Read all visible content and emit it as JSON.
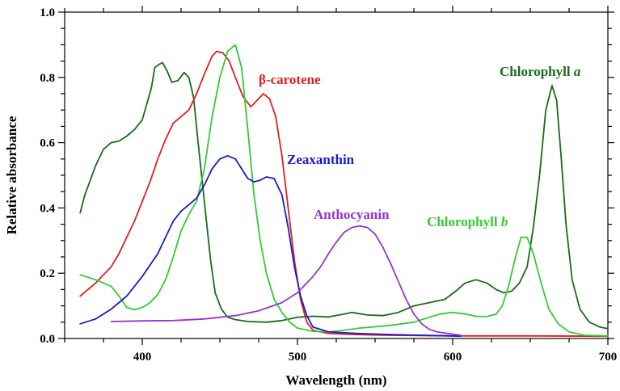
{
  "chart_data": {
    "type": "line",
    "xlabel": "Wavelength (nm)",
    "ylabel": "Relative absorbance",
    "xlim": [
      350,
      700
    ],
    "ylim": [
      0,
      1.0
    ],
    "x_ticks": [
      400,
      500,
      600,
      700
    ],
    "y_ticks": [
      0.0,
      0.2,
      0.4,
      0.6,
      0.8,
      1.0
    ],
    "y_tick_labels": [
      "0.0",
      "0.2",
      "0.4",
      "0.6",
      "0.8",
      "1.0"
    ],
    "grid": false,
    "series": [
      {
        "name": "Chlorophyll a",
        "label_parts": [
          "Chlorophyll ",
          "a"
        ],
        "color": "#1a6b1a",
        "points": [
          [
            360,
            0.385
          ],
          [
            363,
            0.44
          ],
          [
            370,
            0.53
          ],
          [
            375,
            0.58
          ],
          [
            380,
            0.6
          ],
          [
            385,
            0.605
          ],
          [
            390,
            0.62
          ],
          [
            395,
            0.64
          ],
          [
            400,
            0.67
          ],
          [
            403,
            0.72
          ],
          [
            406,
            0.77
          ],
          [
            408,
            0.83
          ],
          [
            411,
            0.84
          ],
          [
            413,
            0.845
          ],
          [
            416,
            0.82
          ],
          [
            419,
            0.785
          ],
          [
            423,
            0.79
          ],
          [
            427,
            0.815
          ],
          [
            430,
            0.8
          ],
          [
            433,
            0.74
          ],
          [
            436,
            0.6
          ],
          [
            440,
            0.42
          ],
          [
            444,
            0.24
          ],
          [
            447,
            0.14
          ],
          [
            451,
            0.09
          ],
          [
            455,
            0.065
          ],
          [
            460,
            0.058
          ],
          [
            468,
            0.052
          ],
          [
            480,
            0.05
          ],
          [
            490,
            0.055
          ],
          [
            500,
            0.065
          ],
          [
            510,
            0.068
          ],
          [
            520,
            0.066
          ],
          [
            530,
            0.075
          ],
          [
            535,
            0.08
          ],
          [
            545,
            0.072
          ],
          [
            555,
            0.07
          ],
          [
            565,
            0.08
          ],
          [
            575,
            0.1
          ],
          [
            585,
            0.11
          ],
          [
            595,
            0.12
          ],
          [
            602,
            0.145
          ],
          [
            608,
            0.17
          ],
          [
            615,
            0.18
          ],
          [
            622,
            0.17
          ],
          [
            628,
            0.15
          ],
          [
            633,
            0.14
          ],
          [
            638,
            0.145
          ],
          [
            643,
            0.17
          ],
          [
            648,
            0.22
          ],
          [
            652,
            0.34
          ],
          [
            656,
            0.5
          ],
          [
            660,
            0.7
          ],
          [
            664,
            0.775
          ],
          [
            667,
            0.73
          ],
          [
            670,
            0.55
          ],
          [
            673,
            0.35
          ],
          [
            677,
            0.18
          ],
          [
            682,
            0.09
          ],
          [
            688,
            0.05
          ],
          [
            695,
            0.035
          ],
          [
            700,
            0.03
          ]
        ]
      },
      {
        "name": "β-carotene",
        "label_parts": [
          "β-carotene"
        ],
        "color": "#e02020",
        "points": [
          [
            360,
            0.13
          ],
          [
            370,
            0.17
          ],
          [
            380,
            0.22
          ],
          [
            385,
            0.26
          ],
          [
            390,
            0.31
          ],
          [
            395,
            0.36
          ],
          [
            400,
            0.42
          ],
          [
            405,
            0.48
          ],
          [
            410,
            0.55
          ],
          [
            415,
            0.61
          ],
          [
            420,
            0.66
          ],
          [
            425,
            0.68
          ],
          [
            430,
            0.7
          ],
          [
            435,
            0.75
          ],
          [
            440,
            0.81
          ],
          [
            445,
            0.865
          ],
          [
            448,
            0.88
          ],
          [
            452,
            0.875
          ],
          [
            456,
            0.85
          ],
          [
            460,
            0.8
          ],
          [
            465,
            0.74
          ],
          [
            470,
            0.71
          ],
          [
            474,
            0.73
          ],
          [
            478,
            0.75
          ],
          [
            482,
            0.735
          ],
          [
            486,
            0.68
          ],
          [
            490,
            0.56
          ],
          [
            494,
            0.4
          ],
          [
            498,
            0.24
          ],
          [
            502,
            0.12
          ],
          [
            506,
            0.05
          ],
          [
            510,
            0.025
          ],
          [
            520,
            0.015
          ],
          [
            540,
            0.012
          ],
          [
            560,
            0.01
          ],
          [
            600,
            0.008
          ],
          [
            650,
            0.008
          ],
          [
            700,
            0.007
          ]
        ]
      },
      {
        "name": "Chlorophyll b",
        "label_parts": [
          "Chlorophyll ",
          "b"
        ],
        "color": "#33cc33",
        "points": [
          [
            360,
            0.195
          ],
          [
            370,
            0.18
          ],
          [
            380,
            0.16
          ],
          [
            385,
            0.13
          ],
          [
            390,
            0.095
          ],
          [
            395,
            0.088
          ],
          [
            400,
            0.095
          ],
          [
            405,
            0.11
          ],
          [
            410,
            0.135
          ],
          [
            415,
            0.18
          ],
          [
            420,
            0.25
          ],
          [
            425,
            0.33
          ],
          [
            430,
            0.38
          ],
          [
            435,
            0.42
          ],
          [
            440,
            0.52
          ],
          [
            445,
            0.68
          ],
          [
            450,
            0.8
          ],
          [
            455,
            0.88
          ],
          [
            460,
            0.9
          ],
          [
            464,
            0.83
          ],
          [
            468,
            0.64
          ],
          [
            472,
            0.44
          ],
          [
            476,
            0.3
          ],
          [
            480,
            0.2
          ],
          [
            485,
            0.12
          ],
          [
            490,
            0.08
          ],
          [
            495,
            0.05
          ],
          [
            500,
            0.032
          ],
          [
            510,
            0.022
          ],
          [
            520,
            0.02
          ],
          [
            530,
            0.025
          ],
          [
            540,
            0.032
          ],
          [
            560,
            0.04
          ],
          [
            575,
            0.05
          ],
          [
            585,
            0.065
          ],
          [
            592,
            0.075
          ],
          [
            600,
            0.08
          ],
          [
            608,
            0.075
          ],
          [
            615,
            0.068
          ],
          [
            622,
            0.067
          ],
          [
            628,
            0.075
          ],
          [
            632,
            0.1
          ],
          [
            636,
            0.16
          ],
          [
            640,
            0.24
          ],
          [
            644,
            0.31
          ],
          [
            648,
            0.31
          ],
          [
            652,
            0.26
          ],
          [
            657,
            0.17
          ],
          [
            662,
            0.09
          ],
          [
            668,
            0.045
          ],
          [
            675,
            0.02
          ],
          [
            685,
            0.01
          ],
          [
            700,
            0.008
          ]
        ]
      },
      {
        "name": "Zeaxanthin",
        "label_parts": [
          "Zeaxanthin"
        ],
        "color": "#1a1acc",
        "points": [
          [
            360,
            0.045
          ],
          [
            370,
            0.06
          ],
          [
            380,
            0.09
          ],
          [
            390,
            0.13
          ],
          [
            400,
            0.19
          ],
          [
            410,
            0.26
          ],
          [
            415,
            0.31
          ],
          [
            420,
            0.36
          ],
          [
            425,
            0.39
          ],
          [
            430,
            0.41
          ],
          [
            435,
            0.43
          ],
          [
            440,
            0.47
          ],
          [
            445,
            0.52
          ],
          [
            450,
            0.55
          ],
          [
            455,
            0.56
          ],
          [
            460,
            0.55
          ],
          [
            464,
            0.52
          ],
          [
            468,
            0.49
          ],
          [
            472,
            0.48
          ],
          [
            476,
            0.485
          ],
          [
            480,
            0.495
          ],
          [
            485,
            0.49
          ],
          [
            490,
            0.44
          ],
          [
            494,
            0.34
          ],
          [
            498,
            0.22
          ],
          [
            502,
            0.13
          ],
          [
            506,
            0.07
          ],
          [
            510,
            0.035
          ],
          [
            520,
            0.02
          ],
          [
            540,
            0.015
          ],
          [
            560,
            0.012
          ],
          [
            600,
            0.008
          ],
          [
            605,
            0.007
          ]
        ]
      },
      {
        "name": "Anthocyanin",
        "label_parts": [
          "Anthocyanin"
        ],
        "color": "#9933cc",
        "points": [
          [
            380,
            0.052
          ],
          [
            400,
            0.054
          ],
          [
            420,
            0.055
          ],
          [
            440,
            0.06
          ],
          [
            460,
            0.07
          ],
          [
            475,
            0.085
          ],
          [
            490,
            0.11
          ],
          [
            500,
            0.14
          ],
          [
            510,
            0.19
          ],
          [
            515,
            0.22
          ],
          [
            520,
            0.26
          ],
          [
            525,
            0.295
          ],
          [
            530,
            0.325
          ],
          [
            535,
            0.34
          ],
          [
            540,
            0.345
          ],
          [
            545,
            0.34
          ],
          [
            550,
            0.32
          ],
          [
            555,
            0.28
          ],
          [
            560,
            0.23
          ],
          [
            565,
            0.175
          ],
          [
            570,
            0.12
          ],
          [
            575,
            0.075
          ],
          [
            580,
            0.045
          ],
          [
            585,
            0.028
          ],
          [
            590,
            0.02
          ],
          [
            600,
            0.013
          ],
          [
            605,
            0.01
          ]
        ]
      }
    ]
  },
  "labels": [
    {
      "series": "Chlorophyll a",
      "parts": [
        "Chlorophyll ",
        "a"
      ],
      "color": "#1a6b1a"
    },
    {
      "series": "β-carotene",
      "parts": [
        "β-carotene"
      ],
      "color": "#e02020"
    },
    {
      "series": "Zeaxanthin",
      "parts": [
        "Zeaxanthin"
      ],
      "color": "#1a1acc"
    },
    {
      "series": "Anthocyanin",
      "parts": [
        "Anthocyanin"
      ],
      "color": "#9933cc"
    },
    {
      "series": "Chlorophyll b",
      "parts": [
        "Chlorophyll ",
        "b"
      ],
      "color": "#33cc33"
    }
  ]
}
